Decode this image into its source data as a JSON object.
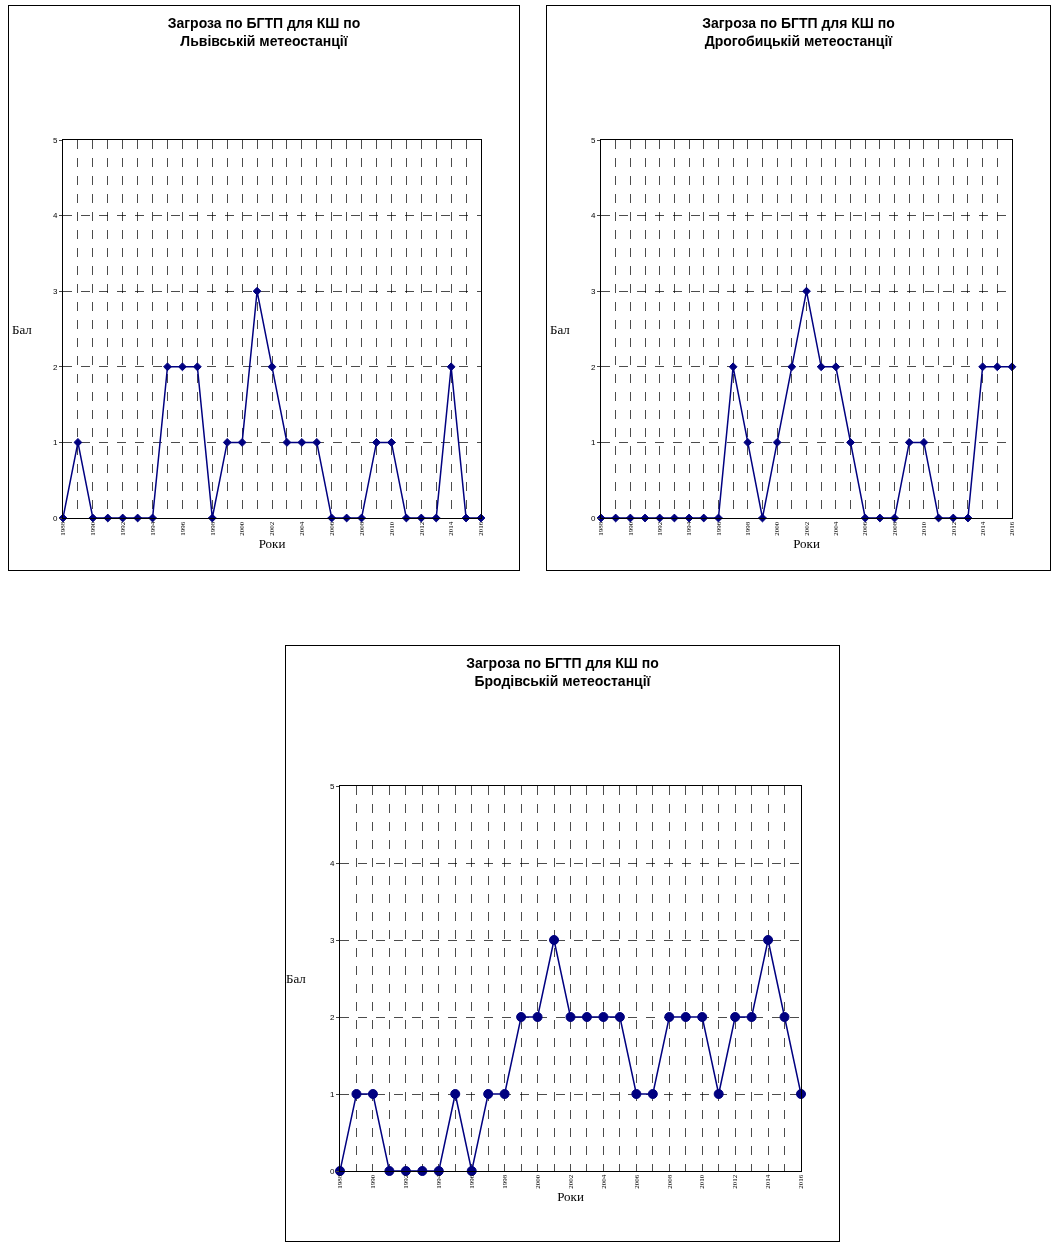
{
  "chart_data": [
    {
      "type": "line",
      "title": "Загроза по БГТП для КШ по\nЛьвівській метеостанції",
      "xlabel": "Роки",
      "ylabel": "Бал",
      "x": [
        1988,
        1989,
        1990,
        1991,
        1992,
        1993,
        1994,
        1995,
        1996,
        1997,
        1998,
        1999,
        2000,
        2001,
        2002,
        2003,
        2004,
        2005,
        2006,
        2007,
        2008,
        2009,
        2010,
        2011,
        2012,
        2013,
        2014,
        2015,
        2016
      ],
      "series": [
        {
          "color": "#000080",
          "values": [
            0,
            1,
            0,
            0,
            0,
            0,
            0,
            2,
            2,
            2,
            0,
            1,
            1,
            3,
            2,
            1,
            1,
            1,
            0,
            0,
            0,
            1,
            1,
            0,
            0,
            0,
            2,
            0,
            0
          ]
        }
      ],
      "xlim": [
        1988,
        2016
      ],
      "xticks": [
        1988,
        {
          "value": 1989,
          "label": null
        },
        1990,
        {
          "value": 1991,
          "label": null
        },
        1992,
        {
          "value": 1993,
          "label": null
        },
        1994,
        {
          "value": 1995,
          "label": null
        },
        1996,
        {
          "value": 1997,
          "label": null
        },
        1998,
        {
          "value": 1999,
          "label": null
        },
        2000,
        {
          "value": 2001,
          "label": null
        },
        2002,
        {
          "value": 2003,
          "label": null
        },
        2004,
        {
          "value": 2005,
          "label": null
        },
        2006,
        {
          "value": 2007,
          "label": null
        },
        2008,
        {
          "value": 2009,
          "label": null
        },
        2010,
        {
          "value": 2011,
          "label": null
        },
        2012,
        {
          "value": 2013,
          "label": null
        },
        2014,
        {
          "value": 2015,
          "label": null
        },
        2016
      ],
      "ylim": [
        0,
        5
      ],
      "yticks": [
        0,
        1,
        2,
        3,
        4,
        5
      ],
      "grid": true,
      "marker": "diamond",
      "line_style": "solid"
    },
    {
      "type": "line",
      "title": "Загроза по БГТП для КШ по\nДрогобицькій метеостанції",
      "xlabel": "Роки",
      "ylabel": "Бал",
      "x": [
        1988,
        1989,
        1990,
        1991,
        1992,
        1993,
        1994,
        1995,
        1996,
        1997,
        1998,
        1999,
        2000,
        2001,
        2002,
        2003,
        2004,
        2005,
        2006,
        2007,
        2008,
        2009,
        2010,
        2011,
        2012,
        2013,
        2014,
        2015,
        2016
      ],
      "series": [
        {
          "color": "#000080",
          "values": [
            0,
            0,
            0,
            0,
            0,
            0,
            0,
            0,
            0,
            2,
            1,
            0,
            1,
            2,
            3,
            2,
            2,
            1,
            0,
            0,
            0,
            1,
            1,
            0,
            0,
            0,
            2,
            2,
            2
          ]
        }
      ],
      "xlim": [
        1988,
        2016
      ],
      "xticks": [
        1988,
        {
          "value": 1989,
          "label": null
        },
        1990,
        {
          "value": 1991,
          "label": null
        },
        1992,
        {
          "value": 1993,
          "label": null
        },
        1994,
        {
          "value": 1995,
          "label": null
        },
        1996,
        {
          "value": 1997,
          "label": null
        },
        1998,
        {
          "value": 1999,
          "label": null
        },
        2000,
        {
          "value": 2001,
          "label": null
        },
        2002,
        {
          "value": 2003,
          "label": null
        },
        2004,
        {
          "value": 2005,
          "label": null
        },
        2006,
        {
          "value": 2007,
          "label": null
        },
        2008,
        {
          "value": 2009,
          "label": null
        },
        2010,
        {
          "value": 2011,
          "label": null
        },
        2012,
        {
          "value": 2013,
          "label": null
        },
        2014,
        {
          "value": 2015,
          "label": null
        },
        2016
      ],
      "ylim": [
        0,
        5
      ],
      "yticks": [
        0,
        1,
        2,
        3,
        4,
        5
      ],
      "grid": true,
      "marker": "diamond",
      "line_style": "solid"
    },
    {
      "type": "line",
      "title": "Загроза по БГТП для КШ по\nБродівській метеостанції",
      "xlabel": "Роки",
      "ylabel": "Бал",
      "x": [
        1988,
        1989,
        1990,
        1991,
        1992,
        1993,
        1994,
        1995,
        1996,
        1997,
        1998,
        1999,
        2000,
        2001,
        2002,
        2003,
        2004,
        2005,
        2006,
        2007,
        2008,
        2009,
        2010,
        2011,
        2012,
        2013,
        2014,
        2015,
        2016
      ],
      "series": [
        {
          "color": "#000080",
          "values": [
            0,
            1,
            1,
            0,
            0,
            0,
            0,
            1,
            0,
            1,
            1,
            2,
            2,
            3,
            2,
            2,
            2,
            2,
            1,
            1,
            2,
            2,
            2,
            1,
            2,
            2,
            3,
            2,
            1
          ]
        }
      ],
      "xlim": [
        1988,
        2016
      ],
      "xticks": [
        1988,
        {
          "value": 1989,
          "label": null
        },
        1990,
        {
          "value": 1991,
          "label": null
        },
        1992,
        {
          "value": 1993,
          "label": null
        },
        1994,
        {
          "value": 1995,
          "label": null
        },
        1996,
        {
          "value": 1997,
          "label": null
        },
        1998,
        {
          "value": 1999,
          "label": null
        },
        2000,
        {
          "value": 2001,
          "label": null
        },
        2002,
        {
          "value": 2003,
          "label": null
        },
        2004,
        {
          "value": 2005,
          "label": null
        },
        2006,
        {
          "value": 2007,
          "label": null
        },
        2008,
        {
          "value": 2009,
          "label": null
        },
        2010,
        {
          "value": 2011,
          "label": null
        },
        2012,
        {
          "value": 2013,
          "label": null
        },
        2014,
        {
          "value": 2015,
          "label": null
        },
        2016
      ],
      "ylim": [
        0,
        5
      ],
      "yticks": [
        0,
        1,
        2,
        3,
        4,
        5
      ],
      "grid": true,
      "marker": "circle",
      "line_style": "solid"
    }
  ]
}
